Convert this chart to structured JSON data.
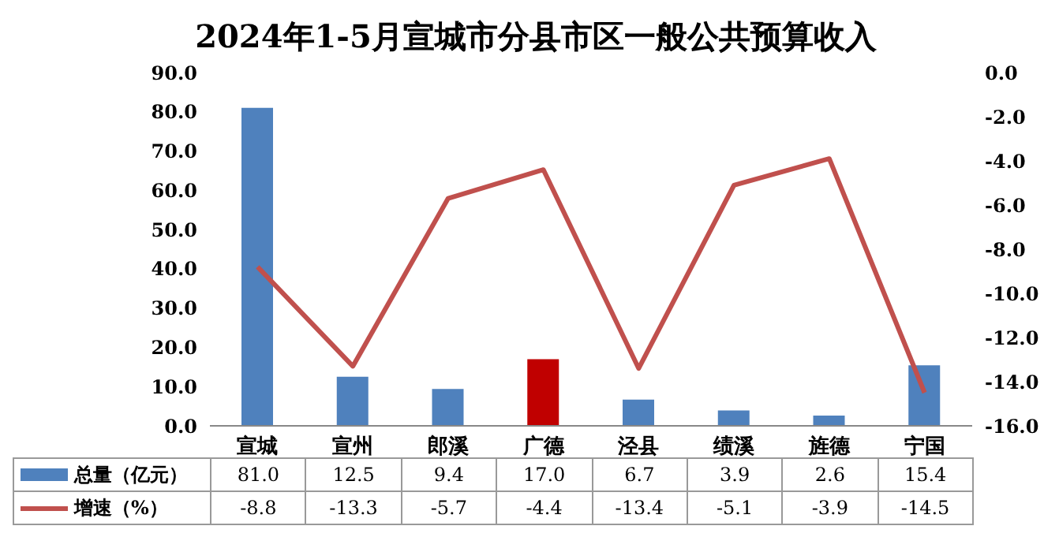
{
  "chart_data": {
    "type": "bar",
    "title": "2024年1-5月宣城市分县市区一般公共预算收入",
    "categories": [
      "宣城",
      "宣州",
      "郎溪",
      "广德",
      "泾县",
      "绩溪",
      "旌德",
      "宁国"
    ],
    "series": [
      {
        "name": "总量（亿元）",
        "color": "#4f81bd",
        "colors": [
          "#4f81bd",
          "#4f81bd",
          "#4f81bd",
          "#c00000",
          "#4f81bd",
          "#4f81bd",
          "#4f81bd",
          "#4f81bd"
        ],
        "values": [
          81.0,
          12.5,
          9.4,
          17.0,
          6.7,
          3.9,
          2.6,
          15.4
        ],
        "value_labels": [
          "81.0",
          "12.5",
          "9.4",
          "17.0",
          "6.7",
          "3.9",
          "2.6",
          "15.4"
        ]
      },
      {
        "name": "增速（%）",
        "type": "line",
        "axis": "y2",
        "color": "#c0504d",
        "values": [
          -8.8,
          -13.3,
          -5.7,
          -4.4,
          -13.4,
          -5.1,
          -3.9,
          -14.5
        ],
        "value_labels": [
          "-8.8",
          "-13.3",
          "-5.7",
          "-4.4",
          "-13.4",
          "-5.1",
          "-3.9",
          "-14.5"
        ]
      }
    ],
    "ylim": [
      0,
      90
    ],
    "yticks": [
      {
        "value": 0,
        "label": "0.0"
      },
      {
        "value": 10,
        "label": "10.0"
      },
      {
        "value": 20,
        "label": "20.0"
      },
      {
        "value": 30,
        "label": "30.0"
      },
      {
        "value": 40,
        "label": "40.0"
      },
      {
        "value": 50,
        "label": "50.0"
      },
      {
        "value": 60,
        "label": "60.0"
      },
      {
        "value": 70,
        "label": "70.0"
      },
      {
        "value": 80,
        "label": "80.0"
      },
      {
        "value": 90,
        "label": "90.0"
      }
    ],
    "y2lim": [
      -16,
      0
    ],
    "y2ticks": [
      {
        "value": -16,
        "label": "-16.0"
      },
      {
        "value": -14,
        "label": "-14.0"
      },
      {
        "value": -12,
        "label": "-12.0"
      },
      {
        "value": -10,
        "label": "-10.0"
      },
      {
        "value": -8,
        "label": "-8.0"
      },
      {
        "value": -6,
        "label": "-6.0"
      },
      {
        "value": -4,
        "label": "-4.0"
      },
      {
        "value": -2,
        "label": "-2.0"
      },
      {
        "value": 0,
        "label": "0.0"
      }
    ],
    "legend": "bottom",
    "marker": "none",
    "line_style": "solid"
  }
}
